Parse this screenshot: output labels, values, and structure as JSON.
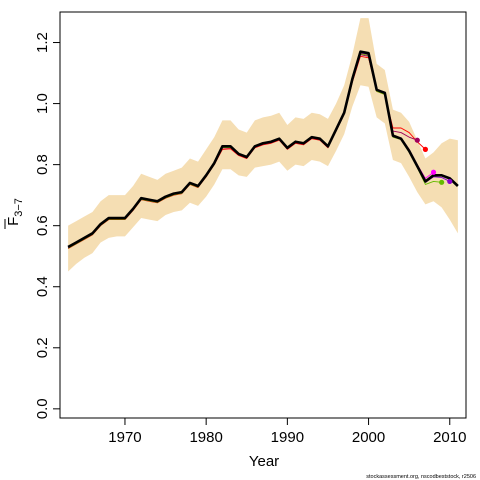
{
  "chart_data": {
    "type": "line",
    "xlabel": "Year",
    "ylabel": {
      "main": "F",
      "sub": "3−7"
    },
    "xlim": [
      1962,
      2012
    ],
    "ylim": [
      -0.03,
      1.3
    ],
    "xticks": [
      1970,
      1980,
      1990,
      2000,
      2010
    ],
    "yticks": [
      0.0,
      0.2,
      0.4,
      0.6,
      0.8,
      1.0,
      1.2
    ],
    "grid": false,
    "credit": "stockassessment.org, nscodbeststock, r2506",
    "confidence_band": {
      "color": "#f5deb3",
      "x": [
        1963,
        1964,
        1965,
        1966,
        1967,
        1968,
        1969,
        1970,
        1971,
        1972,
        1973,
        1974,
        1975,
        1976,
        1977,
        1978,
        1979,
        1980,
        1981,
        1982,
        1983,
        1984,
        1985,
        1986,
        1987,
        1988,
        1989,
        1990,
        1991,
        1992,
        1993,
        1994,
        1995,
        1996,
        1997,
        1998,
        1999,
        2000,
        2001,
        2002,
        2003,
        2004,
        2005,
        2006,
        2007,
        2008,
        2009,
        2010,
        2011
      ],
      "upper": [
        0.6,
        0.615,
        0.63,
        0.645,
        0.68,
        0.7,
        0.7,
        0.7,
        0.73,
        0.77,
        0.76,
        0.75,
        0.77,
        0.78,
        0.79,
        0.82,
        0.81,
        0.85,
        0.89,
        0.945,
        0.945,
        0.915,
        0.905,
        0.945,
        0.955,
        0.96,
        0.97,
        0.93,
        0.955,
        0.95,
        0.97,
        0.965,
        0.95,
        1.0,
        1.06,
        1.16,
        1.28,
        1.28,
        1.13,
        1.11,
        0.98,
        0.97,
        0.94,
        0.88,
        0.82,
        0.84,
        0.87,
        0.885,
        0.88
      ],
      "lower": [
        0.45,
        0.475,
        0.495,
        0.51,
        0.545,
        0.56,
        0.565,
        0.565,
        0.595,
        0.625,
        0.62,
        0.615,
        0.635,
        0.645,
        0.65,
        0.675,
        0.665,
        0.695,
        0.735,
        0.785,
        0.785,
        0.765,
        0.76,
        0.79,
        0.795,
        0.8,
        0.81,
        0.78,
        0.8,
        0.795,
        0.815,
        0.81,
        0.795,
        0.845,
        0.9,
        0.99,
        1.06,
        1.055,
        0.955,
        0.935,
        0.815,
        0.805,
        0.76,
        0.71,
        0.67,
        0.68,
        0.66,
        0.62,
        0.575
      ]
    },
    "series": [
      {
        "color": "#000000",
        "width": 2.6,
        "x": [
          1963,
          1964,
          1965,
          1966,
          1967,
          1968,
          1969,
          1970,
          1971,
          1972,
          1973,
          1974,
          1975,
          1976,
          1977,
          1978,
          1979,
          1980,
          1981,
          1982,
          1983,
          1984,
          1985,
          1986,
          1987,
          1988,
          1989,
          1990,
          1991,
          1992,
          1993,
          1994,
          1995,
          1996,
          1997,
          1998,
          1999,
          2000,
          2001,
          2002,
          2003,
          2004,
          2005,
          2006,
          2007,
          2008,
          2009,
          2010,
          2011
        ],
        "values": [
          0.53,
          0.545,
          0.56,
          0.575,
          0.605,
          0.625,
          0.625,
          0.625,
          0.655,
          0.69,
          0.685,
          0.68,
          0.695,
          0.705,
          0.71,
          0.74,
          0.73,
          0.765,
          0.805,
          0.86,
          0.86,
          0.835,
          0.825,
          0.86,
          0.87,
          0.875,
          0.885,
          0.855,
          0.875,
          0.87,
          0.89,
          0.885,
          0.86,
          0.915,
          0.97,
          1.08,
          1.17,
          1.165,
          1.045,
          1.035,
          0.895,
          0.885,
          0.845,
          0.795,
          0.745,
          0.765,
          0.765,
          0.755,
          0.73
        ]
      },
      {
        "color": "#ff0000",
        "width": 0.9,
        "x": [
          1963,
          1964,
          1965,
          1966,
          1967,
          1968,
          1969,
          1970,
          1971,
          1972,
          1973,
          1974,
          1975,
          1976,
          1977,
          1978,
          1979,
          1980,
          1981,
          1982,
          1983,
          1984,
          1985,
          1986,
          1987,
          1988,
          1989,
          1990,
          1991,
          1992,
          1993,
          1994,
          1995,
          1996,
          1997,
          1998,
          1999,
          2000,
          2001,
          2002,
          2003,
          2004,
          2005,
          2006,
          2007
        ],
        "values": [
          0.525,
          0.54,
          0.555,
          0.57,
          0.6,
          0.62,
          0.62,
          0.62,
          0.65,
          0.685,
          0.68,
          0.675,
          0.69,
          0.7,
          0.705,
          0.735,
          0.725,
          0.76,
          0.8,
          0.85,
          0.852,
          0.83,
          0.82,
          0.855,
          0.865,
          0.87,
          0.88,
          0.85,
          0.87,
          0.865,
          0.885,
          0.88,
          0.855,
          0.91,
          0.965,
          1.07,
          1.155,
          1.15,
          1.04,
          1.03,
          0.92,
          0.92,
          0.905,
          0.875,
          0.85
        ],
        "endpoint": {
          "x": 2007,
          "y": 0.85
        }
      },
      {
        "color": "#a0005a",
        "width": 0.9,
        "x": [
          1963,
          1964,
          1965,
          1966,
          1967,
          1968,
          1969,
          1970,
          1971,
          1972,
          1973,
          1974,
          1975,
          1976,
          1977,
          1978,
          1979,
          1980,
          1981,
          1982,
          1983,
          1984,
          1985,
          1986,
          1987,
          1988,
          1989,
          1990,
          1991,
          1992,
          1993,
          1994,
          1995,
          1996,
          1997,
          1998,
          1999,
          2000,
          2001,
          2002,
          2003,
          2004,
          2005,
          2006
        ],
        "values": [
          0.528,
          0.543,
          0.558,
          0.573,
          0.603,
          0.623,
          0.623,
          0.623,
          0.653,
          0.688,
          0.683,
          0.678,
          0.693,
          0.703,
          0.708,
          0.738,
          0.728,
          0.763,
          0.803,
          0.855,
          0.855,
          0.832,
          0.822,
          0.857,
          0.867,
          0.872,
          0.882,
          0.852,
          0.872,
          0.867,
          0.887,
          0.882,
          0.857,
          0.912,
          0.967,
          1.075,
          1.16,
          1.155,
          1.045,
          1.035,
          0.91,
          0.905,
          0.89,
          0.88
        ],
        "endpoint": {
          "x": 2006,
          "y": 0.88
        }
      },
      {
        "color": "#ff00ff",
        "width": 0.9,
        "x": [
          1963,
          1964,
          1965,
          1966,
          1967,
          1968,
          1969,
          1970,
          1971,
          1972,
          1973,
          1974,
          1975,
          1976,
          1977,
          1978,
          1979,
          1980,
          1981,
          1982,
          1983,
          1984,
          1985,
          1986,
          1987,
          1988,
          1989,
          1990,
          1991,
          1992,
          1993,
          1994,
          1995,
          1996,
          1997,
          1998,
          1999,
          2000,
          2001,
          2002,
          2003,
          2004,
          2005,
          2006,
          2007,
          2008
        ],
        "values": [
          0.527,
          0.542,
          0.557,
          0.572,
          0.602,
          0.622,
          0.622,
          0.622,
          0.652,
          0.687,
          0.682,
          0.677,
          0.692,
          0.702,
          0.707,
          0.737,
          0.727,
          0.762,
          0.802,
          0.857,
          0.857,
          0.833,
          0.823,
          0.858,
          0.868,
          0.873,
          0.883,
          0.853,
          0.873,
          0.868,
          0.888,
          0.883,
          0.858,
          0.913,
          0.968,
          1.077,
          1.165,
          1.16,
          1.042,
          1.032,
          0.895,
          0.888,
          0.85,
          0.8,
          0.755,
          0.775
        ],
        "endpoint": {
          "x": 2008,
          "y": 0.775
        }
      },
      {
        "color": "#66bb00",
        "width": 0.9,
        "x": [
          1963,
          1964,
          1965,
          1966,
          1967,
          1968,
          1969,
          1970,
          1971,
          1972,
          1973,
          1974,
          1975,
          1976,
          1977,
          1978,
          1979,
          1980,
          1981,
          1982,
          1983,
          1984,
          1985,
          1986,
          1987,
          1988,
          1989,
          1990,
          1991,
          1992,
          1993,
          1994,
          1995,
          1996,
          1997,
          1998,
          1999,
          2000,
          2001,
          2002,
          2003,
          2004,
          2005,
          2006,
          2007,
          2008,
          2009
        ],
        "values": [
          0.526,
          0.541,
          0.556,
          0.571,
          0.601,
          0.621,
          0.621,
          0.621,
          0.651,
          0.686,
          0.681,
          0.676,
          0.691,
          0.701,
          0.706,
          0.736,
          0.726,
          0.761,
          0.801,
          0.856,
          0.856,
          0.833,
          0.823,
          0.858,
          0.868,
          0.873,
          0.883,
          0.853,
          0.873,
          0.868,
          0.888,
          0.883,
          0.858,
          0.913,
          0.968,
          1.077,
          1.163,
          1.158,
          1.04,
          1.03,
          0.89,
          0.882,
          0.84,
          0.79,
          0.735,
          0.745,
          0.742
        ],
        "endpoint": {
          "x": 2009,
          "y": 0.742
        }
      },
      {
        "color": "#8800cc",
        "width": 0.9,
        "x": [
          1963,
          1964,
          1965,
          1966,
          1967,
          1968,
          1969,
          1970,
          1971,
          1972,
          1973,
          1974,
          1975,
          1976,
          1977,
          1978,
          1979,
          1980,
          1981,
          1982,
          1983,
          1984,
          1985,
          1986,
          1987,
          1988,
          1989,
          1990,
          1991,
          1992,
          1993,
          1994,
          1995,
          1996,
          1997,
          1998,
          1999,
          2000,
          2001,
          2002,
          2003,
          2004,
          2005,
          2006,
          2007,
          2008,
          2009,
          2010
        ],
        "values": [
          0.529,
          0.544,
          0.559,
          0.574,
          0.604,
          0.624,
          0.624,
          0.624,
          0.654,
          0.689,
          0.684,
          0.679,
          0.694,
          0.704,
          0.709,
          0.739,
          0.729,
          0.764,
          0.804,
          0.858,
          0.858,
          0.834,
          0.824,
          0.859,
          0.869,
          0.874,
          0.884,
          0.854,
          0.874,
          0.869,
          0.889,
          0.884,
          0.859,
          0.914,
          0.969,
          1.078,
          1.167,
          1.162,
          1.043,
          1.033,
          0.892,
          0.884,
          0.843,
          0.793,
          0.742,
          0.76,
          0.758,
          0.745
        ],
        "endpoint": {
          "x": 2010,
          "y": 0.745
        }
      }
    ]
  }
}
